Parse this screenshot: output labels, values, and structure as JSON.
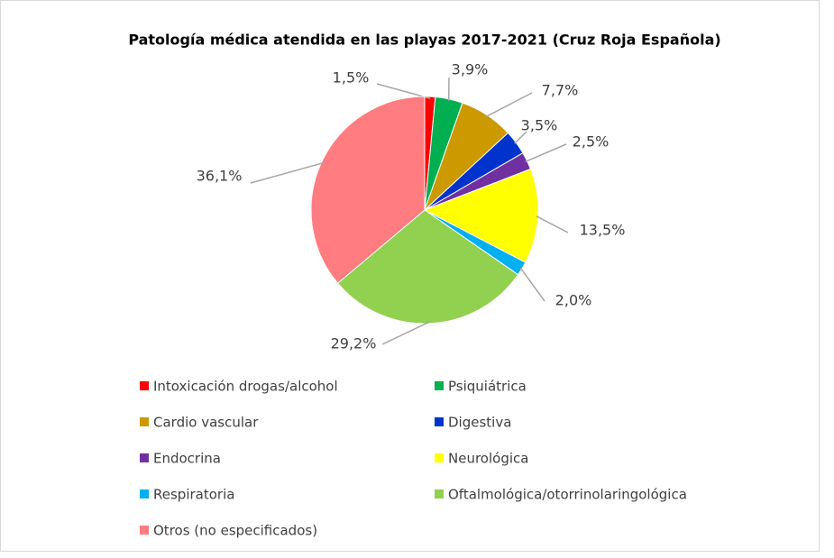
{
  "chart_data": {
    "type": "pie",
    "title": "Patología médica atendida en las playas 2017-2021 (Cruz Roja Española)",
    "categories": [
      "Intoxicación drogas/alcohol",
      "Psiquiátrica",
      "Cardio vascular",
      "Digestiva",
      "Endocrina",
      "Neurológica",
      "Respiratoria",
      "Oftalmológica/otorrinolaringológica",
      "Otros (no especificados)"
    ],
    "values": [
      1.5,
      3.9,
      7.7,
      3.5,
      2.5,
      13.5,
      2.0,
      29.2,
      36.1
    ],
    "value_labels": [
      "1,5%",
      "3,9%",
      "7,7%",
      "3,5%",
      "2,5%",
      "13,5%",
      "2,0%",
      "29,2%",
      "36,1%"
    ],
    "colors": [
      "#ff0000",
      "#00b050",
      "#cc9900",
      "#0033cc",
      "#7030a0",
      "#ffff00",
      "#00b0f0",
      "#92d050",
      "#ff7c80"
    ]
  }
}
